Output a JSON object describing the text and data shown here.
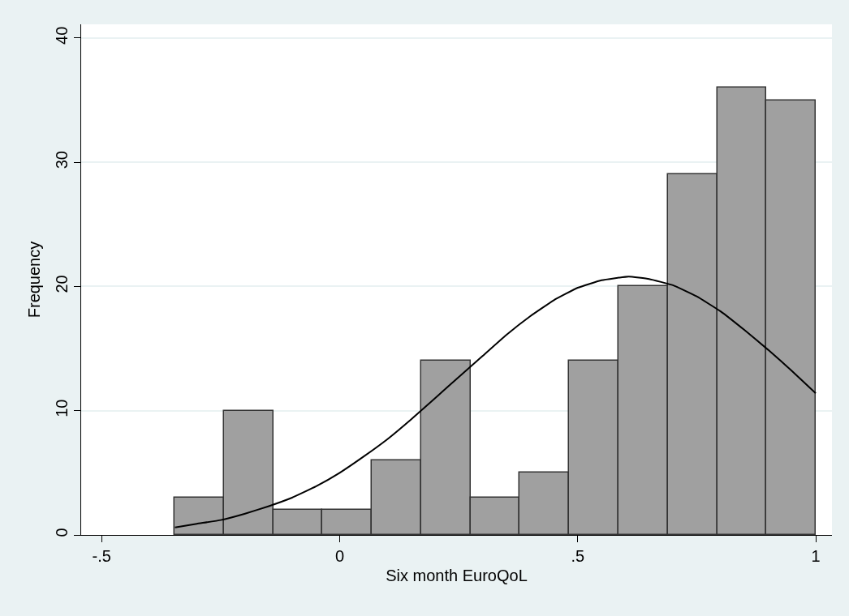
{
  "chart_data": {
    "type": "histogram",
    "xlabel": "Six month EuroQoL",
    "ylabel": "Frequency",
    "bins": [
      -0.347,
      -0.243,
      -0.139,
      -0.036,
      0.068,
      0.171,
      0.275,
      0.378,
      0.482,
      0.586,
      0.689,
      0.793,
      0.896,
      1.0
    ],
    "values": [
      3,
      10,
      2,
      2,
      6,
      14,
      3,
      5,
      14,
      20,
      29,
      36,
      35
    ],
    "color": "#a0a0a0",
    "series": [
      {
        "type": "line",
        "color": "#000000",
        "x": [
          -0.346,
          -0.3,
          -0.25,
          -0.2,
          -0.15,
          -0.1,
          -0.05,
          0,
          0.05,
          0.1,
          0.15,
          0.2,
          0.25,
          0.3,
          0.35,
          0.4,
          0.45,
          0.5,
          0.55,
          0.607,
          0.65,
          0.7,
          0.75,
          0.8,
          0.85,
          0.9,
          0.95,
          1.0
        ],
        "values": [
          0.6,
          0.9,
          1.2,
          1.7,
          2.3,
          3.0,
          3.9,
          5.0,
          6.3,
          7.7,
          9.3,
          11.0,
          12.7,
          14.4,
          16.1,
          17.6,
          18.9,
          19.9,
          20.5,
          20.8,
          20.6,
          20.1,
          19.2,
          18.0,
          16.5,
          14.9,
          13.2,
          11.4
        ]
      }
    ],
    "xlim": [
      -0.543,
      1.034
    ],
    "ylim": [
      0,
      41.1
    ],
    "xticks": [
      {
        "value": -0.5,
        "label": "-.5"
      },
      0,
      {
        "value": 0.5,
        "label": ".5"
      },
      1
    ],
    "yticks": [
      0,
      10,
      20,
      30,
      40
    ],
    "grid": "y",
    "marker": "none",
    "line_style": "solid"
  }
}
